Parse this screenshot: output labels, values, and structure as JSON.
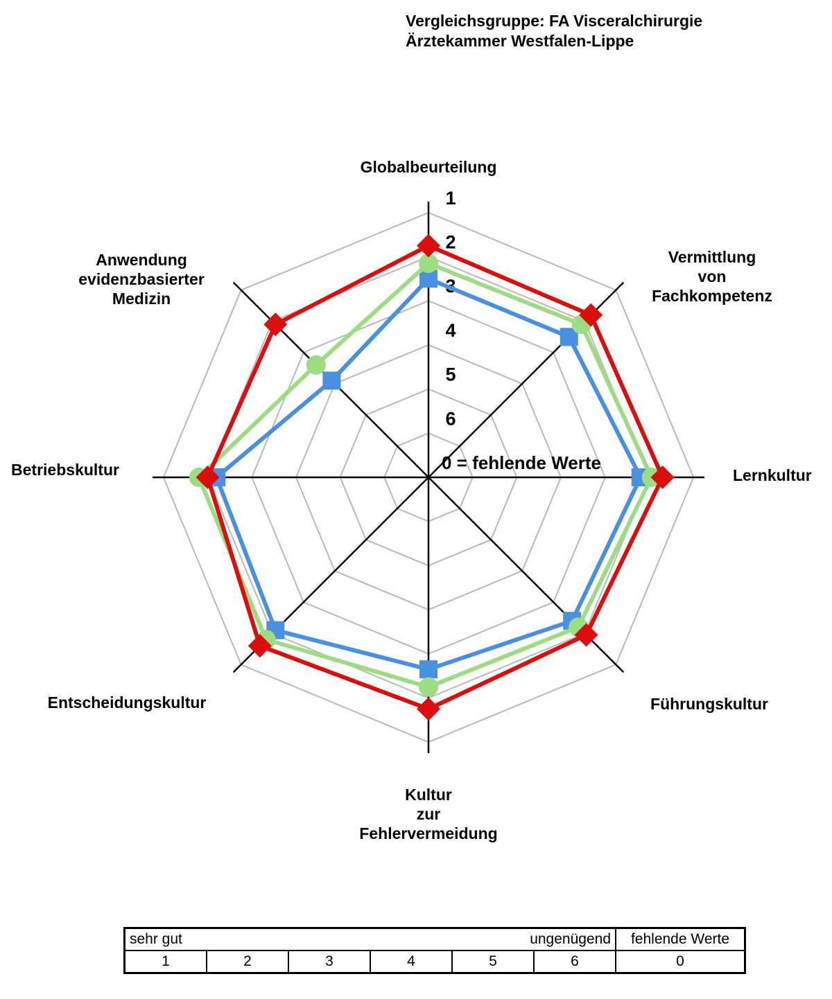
{
  "chart_data": {
    "type": "radar",
    "title": "Vergleichsgruppe: FA Visceralchirurgie\nÄrztekammer Westfalen-Lippe",
    "scale": {
      "ticks": [
        "1",
        "2",
        "3",
        "4",
        "5",
        "6"
      ],
      "center_label": "0 = fehlende Werte",
      "best_label": "sehr gut",
      "worst_label": "ungenügend",
      "range_note": "1 = outer ring, 6 = innermost ring, 0 = center (missing values)"
    },
    "axes": [
      {
        "label": "Globalbeurteilung"
      },
      {
        "label": "Vermittlung\nvon\nFachkompetenz"
      },
      {
        "label": "Lernkultur"
      },
      {
        "label": "Führungskultur"
      },
      {
        "label": "Kultur\nzur\nFehlervermeidung"
      },
      {
        "label": "Entscheidungskultur"
      },
      {
        "label": "Betriebskultur"
      },
      {
        "label": "Anwendung\nevidenzbasierter\nMedizin"
      }
    ],
    "series": [
      {
        "name": "series-blue-square",
        "marker": "square",
        "color": "#4a90e0",
        "values": [
          2.5,
          2.5,
          2.2,
          2.4,
          2.65,
          2.1,
          2.2,
          3.9
        ]
      },
      {
        "name": "series-green-circle",
        "marker": "circle",
        "color": "#9ddc82",
        "values": [
          2.15,
          2.1,
          1.95,
          2.2,
          2.25,
          1.8,
          1.8,
          3.4
        ]
      },
      {
        "name": "series-red-diamond",
        "marker": "diamond",
        "color": "#dc0d0d",
        "values": [
          1.75,
          1.8,
          1.7,
          1.95,
          1.75,
          1.6,
          2.0,
          2.1
        ]
      }
    ],
    "grid_color": "#b9b9b9",
    "axis_color": "#000000",
    "legend_position": "bottom-table"
  },
  "legend_table": {
    "quality_left": "sehr gut",
    "quality_right": "ungenügend",
    "missing_header": "fehlende Werte",
    "scale_cells": [
      "1",
      "2",
      "3",
      "4",
      "5",
      "6"
    ],
    "missing_cell": "0"
  }
}
